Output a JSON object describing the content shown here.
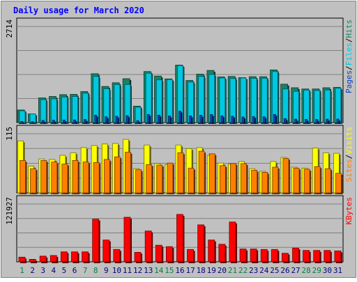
{
  "chart_data": {
    "type": "bar",
    "title": "Daily usage for March 2020",
    "categories": [
      "1",
      "2",
      "3",
      "4",
      "5",
      "6",
      "7",
      "8",
      "9",
      "10",
      "11",
      "12",
      "13",
      "14",
      "15",
      "16",
      "17",
      "18",
      "19",
      "20",
      "21",
      "22",
      "23",
      "24",
      "25",
      "26",
      "27",
      "28",
      "29",
      "30",
      "31"
    ],
    "weekend_days": [
      "1",
      "7",
      "8",
      "14",
      "15",
      "21",
      "22",
      "28",
      "29"
    ],
    "panels": [
      {
        "id": "pages-files-hits",
        "scale_label": "2714",
        "ymax": 2714,
        "legend": [
          "Pages",
          "/",
          "Files",
          "/",
          "Hits"
        ],
        "series": [
          {
            "name": "Hits",
            "color": "#1a8066",
            "values": [
              355,
              243,
              697,
              738,
              789,
              797,
              876,
              1380,
              1020,
              1125,
              1239,
              463,
              1441,
              1313,
              1233,
              1623,
              1189,
              1368,
              1472,
              1289,
              1302,
              1269,
              1296,
              1294,
              1487,
              1084,
              984,
              949,
              949,
              984,
              993
            ]
          },
          {
            "name": "Files",
            "color": "#00c8e0",
            "values": [
              331,
              243,
              647,
              669,
              719,
              736,
              826,
              1302,
              953,
              1073,
              1072,
              433,
              1392,
              1205,
              1214,
              1609,
              1143,
              1302,
              1357,
              1260,
              1244,
              1260,
              1248,
              1252,
              1440,
              948,
              880,
              915,
              905,
              917,
              972
            ]
          },
          {
            "name": "Pages",
            "color": "#1040c0",
            "values": [
              32,
              24,
              60,
              67,
              71,
              74,
              85,
              210,
              164,
              177,
              194,
              55,
              230,
              210,
              187,
              325,
              190,
              206,
              230,
              191,
              180,
              158,
              172,
              164,
              232,
              111,
              96,
              90,
              88,
              96,
              99
            ]
          }
        ]
      },
      {
        "id": "sites-visits",
        "scale_label": "115",
        "ymax": 115,
        "legend": [
          "Sites",
          "/",
          "Visits"
        ],
        "series": [
          {
            "name": "Visits",
            "color": "#ffff00",
            "values": [
              101,
              52,
              66,
              65,
              73,
              78,
              88,
              92,
              95,
              96,
              104,
              47,
              93,
              57,
              55,
              93,
              86,
              88,
              73,
              58,
              56,
              61,
              47,
              42,
              61,
              69,
              50,
              48,
              87,
              78,
              77
            ]
          },
          {
            "name": "Sites",
            "color": "#ff8000",
            "values": [
              63,
              47,
              63,
              60,
              56,
              63,
              60,
              59,
              65,
              70,
              79,
              45,
              55,
              54,
              58,
              78,
              48,
              81,
              76,
              53,
              57,
              57,
              44,
              40,
              50,
              67,
              48,
              46,
              51,
              47,
              38
            ]
          }
        ]
      },
      {
        "id": "kbytes",
        "scale_label": "121927",
        "ymax": 121927,
        "legend": [
          "KBytes"
        ],
        "series": [
          {
            "name": "KBytes",
            "color": "#ff0000",
            "values": [
              9800,
              5300,
              12000,
              13300,
              21000,
              21000,
              21000,
              90000,
              46000,
              26000,
              94000,
              20000,
              65000,
              35000,
              32000,
              100000,
              26000,
              78000,
              46000,
              37000,
              84000,
              27000,
              27000,
              26000,
              26000,
              18000,
              29000,
              24000,
              24000,
              24000,
              23000
            ]
          }
        ]
      }
    ],
    "colors": {
      "title": "#0000ff",
      "weekday_label": "#000080",
      "weekend_label": "#008040",
      "plot_bg": "#c0c0c0",
      "frame_bg": "#c0c0c0",
      "grid": "#808080"
    }
  }
}
